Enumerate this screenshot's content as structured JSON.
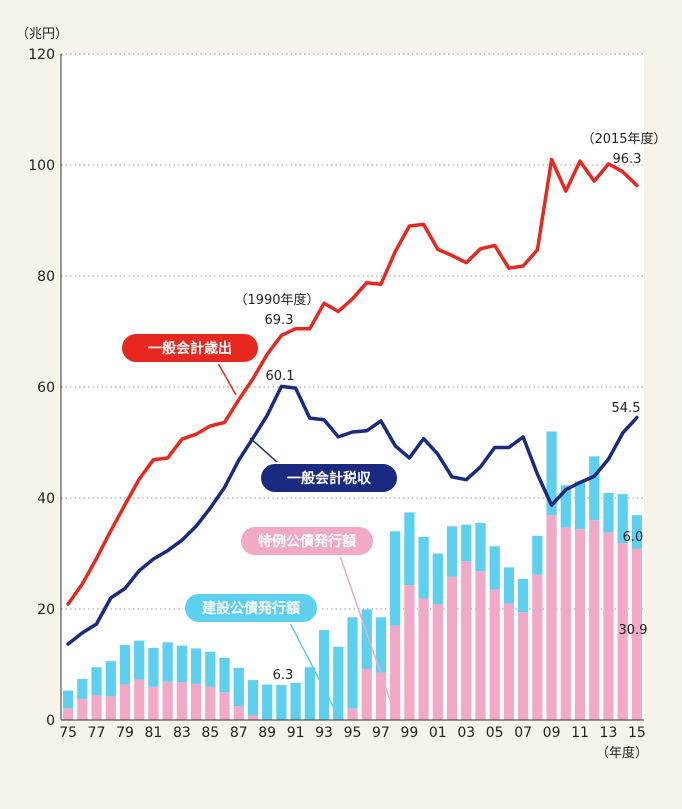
{
  "chart_data": {
    "type": "bar",
    "y_unit": "（兆円）",
    "x_unit": "（年度）",
    "ylim": [
      0,
      120
    ],
    "yticks": [
      0,
      20,
      40,
      60,
      80,
      100,
      120
    ],
    "grid": true,
    "years": [
      1975,
      1976,
      1977,
      1978,
      1979,
      1980,
      1981,
      1982,
      1983,
      1984,
      1985,
      1986,
      1987,
      1988,
      1989,
      1990,
      1991,
      1992,
      1993,
      1994,
      1995,
      1996,
      1997,
      1998,
      1999,
      2000,
      2001,
      2002,
      2003,
      2004,
      2005,
      2006,
      2007,
      2008,
      2009,
      2010,
      2011,
      2012,
      2013,
      2014,
      2015
    ],
    "x_tick_labels": [
      "75",
      "77",
      "79",
      "81",
      "83",
      "85",
      "87",
      "89",
      "91",
      "93",
      "95",
      "97",
      "99",
      "01",
      "03",
      "05",
      "07",
      "09",
      "11",
      "13",
      "15"
    ],
    "series": [
      {
        "name": "一般会計歳出",
        "kind": "line",
        "color": "#e8281e",
        "values": [
          20.9,
          24.5,
          29.1,
          34.1,
          38.8,
          43.4,
          46.9,
          47.2,
          50.6,
          51.5,
          53.0,
          53.6,
          57.7,
          61.5,
          65.9,
          69.3,
          70.5,
          70.5,
          75.1,
          73.6,
          75.9,
          78.8,
          78.5,
          84.4,
          89.0,
          89.3,
          84.8,
          83.7,
          82.4,
          84.9,
          85.5,
          81.4,
          81.8,
          84.7,
          101.0,
          95.3,
          100.7,
          97.1,
          100.2,
          98.8,
          96.3
        ]
      },
      {
        "name": "一般会計税収",
        "kind": "line",
        "color": "#1a2a80",
        "values": [
          13.7,
          15.7,
          17.3,
          22.0,
          23.7,
          26.9,
          29.0,
          30.5,
          32.4,
          34.9,
          38.2,
          41.9,
          46.8,
          50.8,
          54.9,
          60.1,
          59.8,
          54.4,
          54.1,
          51.0,
          51.9,
          52.1,
          53.9,
          49.4,
          47.2,
          50.7,
          47.9,
          43.8,
          43.3,
          45.6,
          49.1,
          49.1,
          51.0,
          44.3,
          38.7,
          41.5,
          42.8,
          43.9,
          47.0,
          51.7,
          54.5
        ]
      },
      {
        "name": "特例公債発行額",
        "kind": "stacked_bar",
        "color": "#f2a9c6",
        "values": [
          2.1,
          3.8,
          4.5,
          4.3,
          6.4,
          7.3,
          6.0,
          6.9,
          6.8,
          6.5,
          6.0,
          5.0,
          2.5,
          0.8,
          0,
          0,
          0,
          0,
          0,
          0,
          2.1,
          9.2,
          8.5,
          17.0,
          24.3,
          21.9,
          20.9,
          25.8,
          28.6,
          26.8,
          23.5,
          21.0,
          19.4,
          26.2,
          36.9,
          34.7,
          34.4,
          36.0,
          33.8,
          31.9,
          30.9
        ]
      },
      {
        "name": "建設公債発行額",
        "kind": "stacked_bar",
        "color": "#5cd0ee",
        "values": [
          3.2,
          3.6,
          5.0,
          6.3,
          7.1,
          7.0,
          7.0,
          7.1,
          6.6,
          6.4,
          6.3,
          6.2,
          6.9,
          6.4,
          6.4,
          6.3,
          6.7,
          9.5,
          16.2,
          13.2,
          16.4,
          10.7,
          10.0,
          17.0,
          13.1,
          11.1,
          9.1,
          9.1,
          6.6,
          8.7,
          7.8,
          6.5,
          6.0,
          7.0,
          15.1,
          7.6,
          8.6,
          11.5,
          7.1,
          8.8,
          6.0
        ]
      }
    ],
    "labels": {
      "expenditure": "一般会計歳出",
      "revenue": "一般会計税収",
      "special_bonds": "特例公債発行額",
      "construction_bonds": "建設公債発行額"
    },
    "annotations": {
      "exp_1990_year": "（1990年度）",
      "exp_1990_value": "69.3",
      "exp_2015_year": "（2015年度）",
      "exp_2015_value": "96.3",
      "rev_1990_value": "60.1",
      "rev_2015_value": "54.5",
      "con_1990_value": "6.3",
      "con_2015_value": "6.0",
      "sp_2015_value": "30.9"
    }
  }
}
